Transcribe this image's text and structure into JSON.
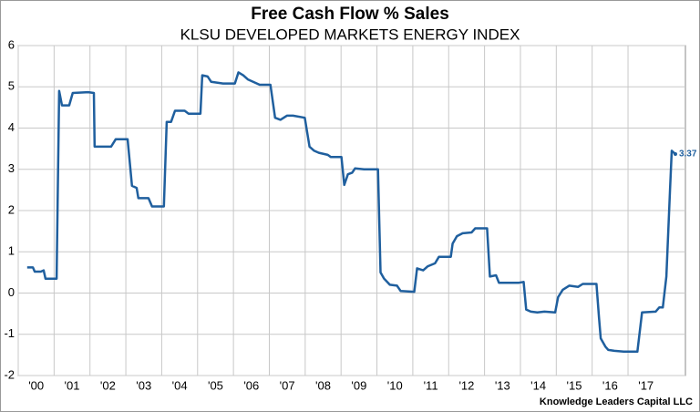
{
  "chart_data": {
    "type": "line",
    "title": "Free Cash Flow % Sales",
    "subtitle": "KLSU DEVELOPED MARKETS ENERGY INDEX",
    "source": "Knowledge Leaders Capital LLC",
    "xlim": [
      2000,
      2018.6
    ],
    "ylim": [
      -2,
      6
    ],
    "yticks": [
      -2,
      -1,
      0,
      1,
      2,
      3,
      4,
      5,
      6
    ],
    "xticks": [
      {
        "value": 2000,
        "label": "'00"
      },
      {
        "value": 2001,
        "label": "'01"
      },
      {
        "value": 2002,
        "label": "'02"
      },
      {
        "value": 2003,
        "label": "'03"
      },
      {
        "value": 2004,
        "label": "'04"
      },
      {
        "value": 2005,
        "label": "'05"
      },
      {
        "value": 2006,
        "label": "'06"
      },
      {
        "value": 2007,
        "label": "'07"
      },
      {
        "value": 2008,
        "label": "'08"
      },
      {
        "value": 2009,
        "label": "'09"
      },
      {
        "value": 2010,
        "label": "'10"
      },
      {
        "value": 2011,
        "label": "'11"
      },
      {
        "value": 2012,
        "label": "'12"
      },
      {
        "value": 2013,
        "label": "'13"
      },
      {
        "value": 2014,
        "label": "'14"
      },
      {
        "value": 2015,
        "label": "'15"
      },
      {
        "value": 2016,
        "label": "'16"
      },
      {
        "value": 2017,
        "label": "'17"
      }
    ],
    "grid": true,
    "series": [
      {
        "name": "Free Cash Flow % Sales",
        "color": "#1f5f9e",
        "x": [
          2000.25,
          2000.41,
          2000.46,
          2000.63,
          2000.71,
          2000.76,
          2001.07,
          2001.14,
          2001.22,
          2001.42,
          2001.52,
          2001.95,
          2002.11,
          2002.13,
          2002.59,
          2002.72,
          2003.05,
          2003.17,
          2003.3,
          2003.35,
          2003.63,
          2003.73,
          2004.06,
          2004.14,
          2004.26,
          2004.37,
          2004.64,
          2004.75,
          2005.08,
          2005.13,
          2005.28,
          2005.38,
          2005.71,
          2006.04,
          2006.14,
          2006.27,
          2006.4,
          2006.73,
          2007.03,
          2007.16,
          2007.31,
          2007.49,
          2007.66,
          2007.99,
          2008.12,
          2008.25,
          2008.38,
          2008.63,
          2008.71,
          2009.01,
          2009.09,
          2009.19,
          2009.31,
          2009.39,
          2009.64,
          2010.03,
          2010.1,
          2010.2,
          2010.36,
          2010.56,
          2010.66,
          2011.04,
          2011.12,
          2011.29,
          2011.42,
          2011.62,
          2011.73,
          2012.06,
          2012.11,
          2012.23,
          2012.39,
          2012.64,
          2012.74,
          2013.07,
          2013.15,
          2013.32,
          2013.4,
          2013.96,
          2014.09,
          2014.16,
          2014.29,
          2014.47,
          2014.67,
          2014.97,
          2015.05,
          2015.18,
          2015.36,
          2015.61,
          2015.74,
          2016.12,
          2016.19,
          2016.24,
          2016.37,
          2016.45,
          2016.62,
          2016.88,
          2017.26,
          2017.39,
          2017.77,
          2017.87,
          2017.97,
          2018.07,
          2018.17,
          2018.22,
          2018.32
        ],
        "values": [
          0.62,
          0.62,
          0.52,
          0.52,
          0.55,
          0.35,
          0.35,
          4.9,
          4.55,
          4.55,
          4.85,
          4.87,
          4.85,
          3.55,
          3.55,
          3.73,
          3.73,
          2.6,
          2.55,
          2.3,
          2.3,
          2.1,
          2.1,
          4.15,
          4.15,
          4.42,
          4.42,
          4.35,
          4.35,
          5.28,
          5.25,
          5.12,
          5.08,
          5.08,
          5.35,
          5.28,
          5.18,
          5.05,
          5.05,
          4.25,
          4.2,
          4.3,
          4.3,
          4.25,
          3.55,
          3.45,
          3.4,
          3.35,
          3.3,
          3.3,
          2.62,
          2.88,
          2.92,
          3.02,
          3.0,
          3.0,
          0.5,
          0.35,
          0.2,
          0.18,
          0.05,
          0.03,
          0.6,
          0.55,
          0.65,
          0.72,
          0.88,
          0.88,
          1.2,
          1.38,
          1.45,
          1.47,
          1.57,
          1.57,
          0.4,
          0.43,
          0.25,
          0.25,
          0.27,
          -0.4,
          -0.45,
          -0.47,
          -0.45,
          -0.47,
          -0.1,
          0.08,
          0.18,
          0.15,
          0.22,
          0.22,
          -0.6,
          -1.1,
          -1.3,
          -1.38,
          -1.4,
          -1.42,
          -1.42,
          -0.47,
          -0.45,
          -0.35,
          -0.35,
          0.4,
          2.5,
          3.45,
          3.37
        ]
      }
    ]
  }
}
